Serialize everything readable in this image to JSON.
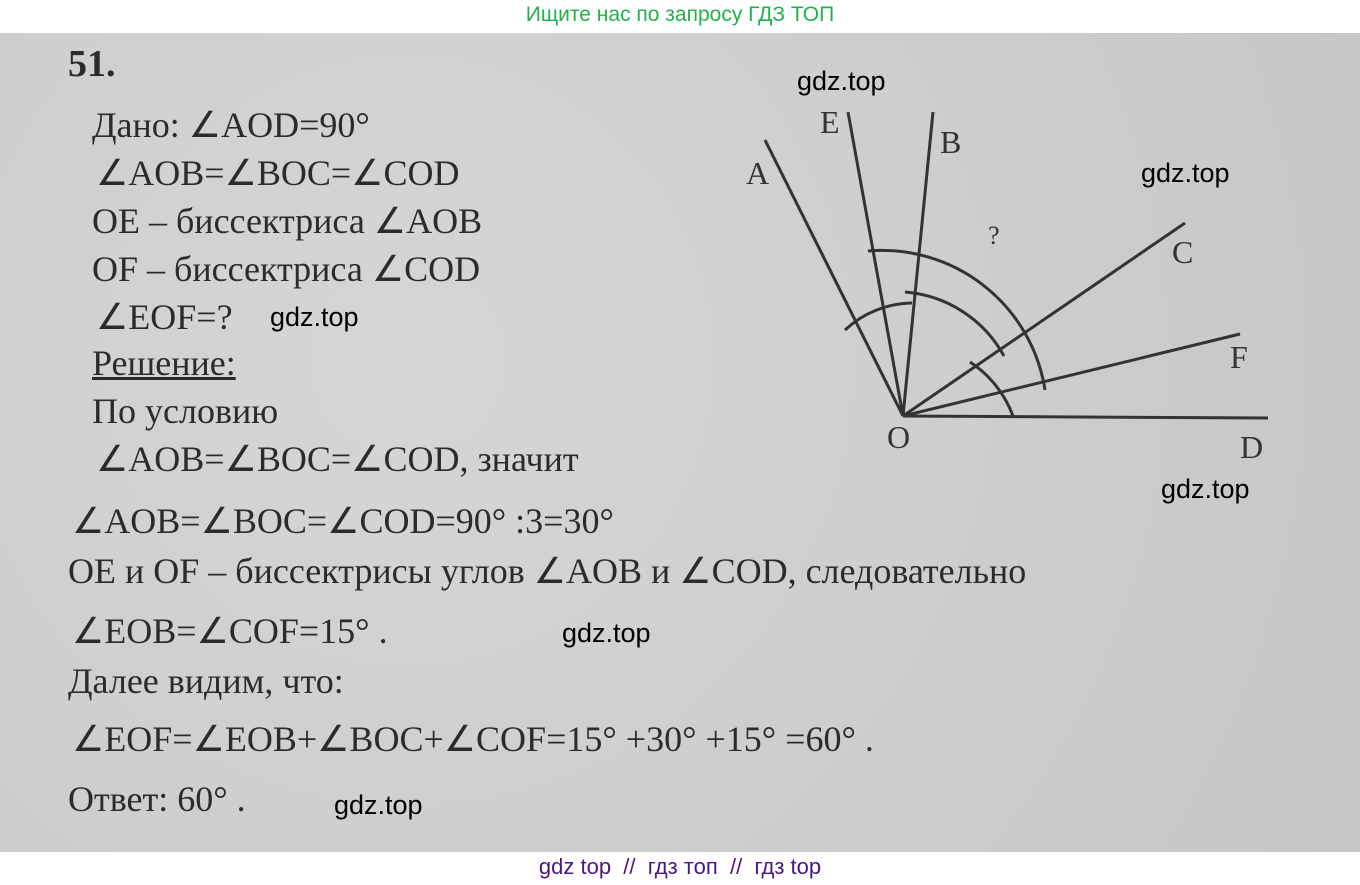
{
  "header": {
    "text": "Ищите нас по запросу ГДЗ ТОП"
  },
  "footer": {
    "text": "gdz top  //  гдз топ  //  гдз top"
  },
  "problem": {
    "number": "51.",
    "given_label": "Дано: ∠AOD=90°",
    "given": [
      "∠AOB=∠BOC=∠COD",
      "OE – биссектриса ∠AOB",
      "OF – биссектриса ∠COD",
      "∠EOF=?"
    ],
    "solution_label": "Решение:",
    "solution": [
      "По условию",
      "∠AOB=∠BOC=∠COD, значит",
      "∠AOB=∠BOC=∠COD=90° :3=30°",
      "OE и OF – биссектрисы углов ∠AOB и ∠COD, следовательно",
      "∠EOB=∠COF=15° .",
      "Далее видим, что:",
      "∠EOF=∠EOB+∠BOC+∠COF=15° +30° +15° =60° ."
    ],
    "answer": "Ответ: 60° ."
  },
  "diagram": {
    "labels": {
      "A": "A",
      "E": "E",
      "B": "B",
      "C": "C",
      "F": "F",
      "D": "D",
      "O": "O",
      "q": "?"
    }
  },
  "watermark": "gdz.top"
}
